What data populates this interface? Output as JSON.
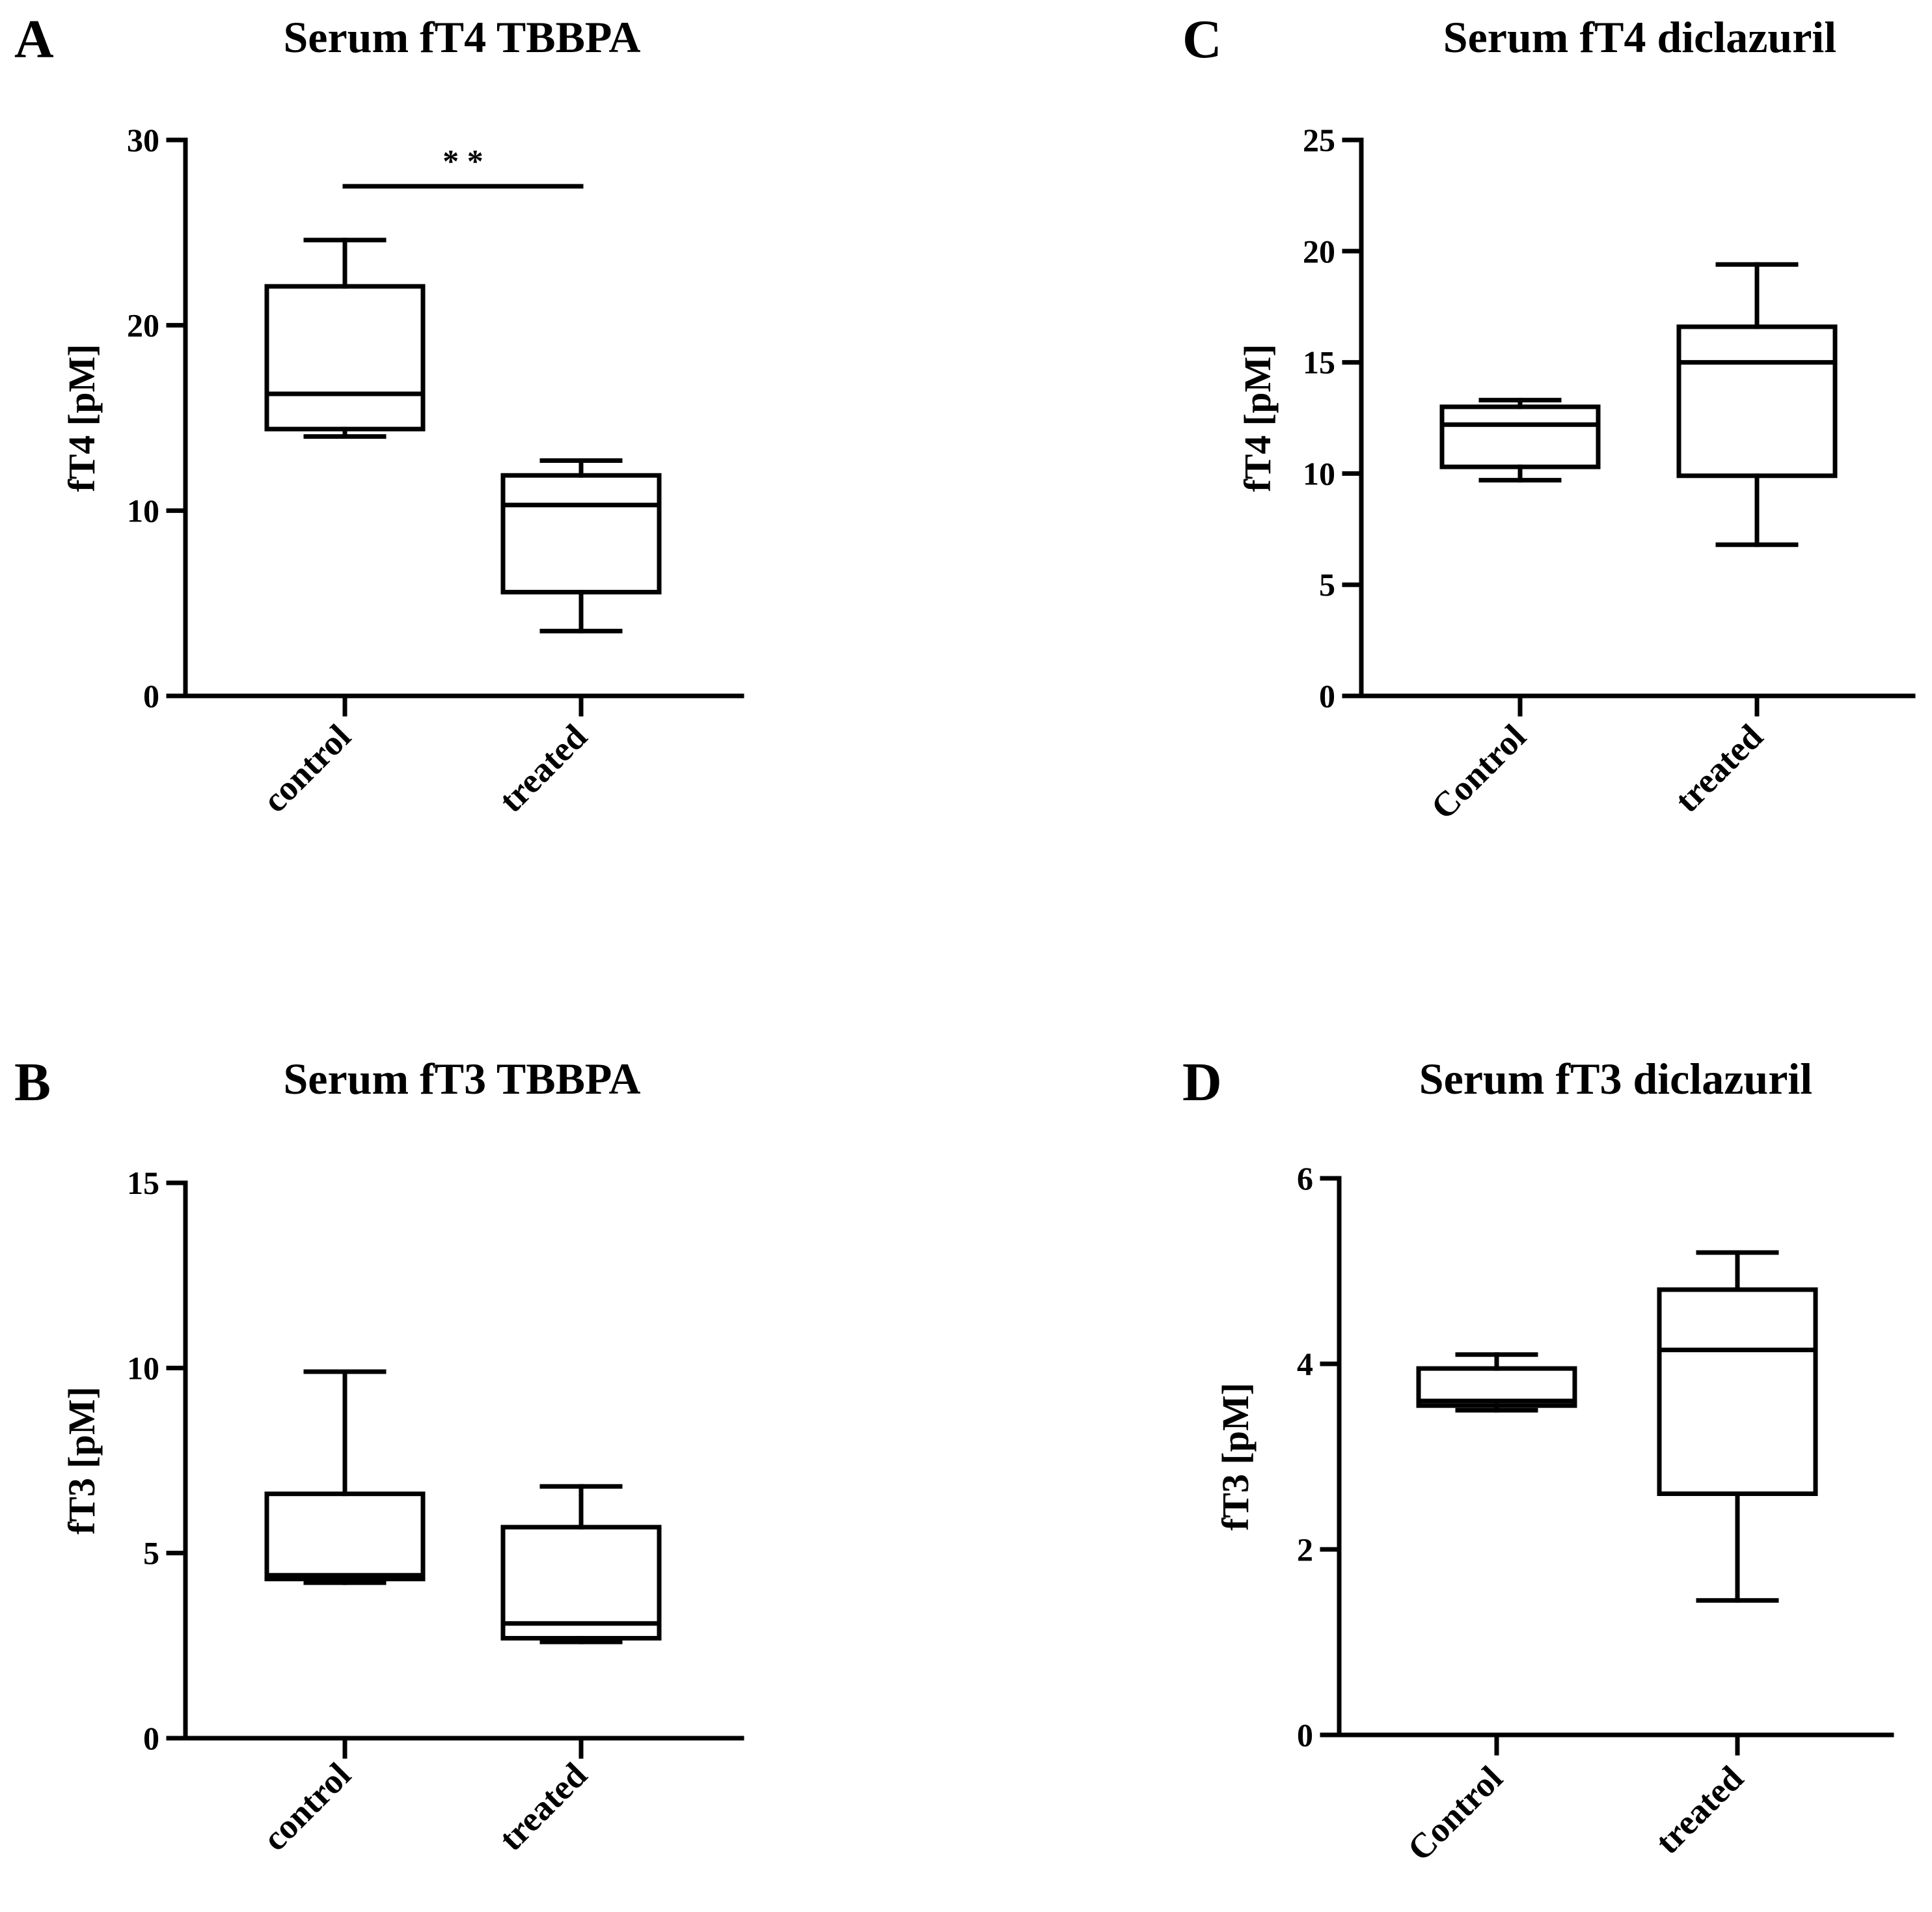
{
  "figure": {
    "colors": {
      "ink": "#000000",
      "background": "#ffffff"
    }
  },
  "chart_data": [
    {
      "id": "A",
      "panel_label": "A",
      "type": "box",
      "title": "Serum fT4 TBBPA",
      "ylabel": "fT4 [pM]",
      "xlabel": "",
      "ylim": [
        0,
        30
      ],
      "yticks": [
        0,
        10,
        20,
        30
      ],
      "categories": [
        "control",
        "treated"
      ],
      "boxes": [
        {
          "category": "control",
          "min": 14.0,
          "q1": 14.4,
          "median": 16.3,
          "q3": 22.1,
          "max": 24.6
        },
        {
          "category": "treated",
          "min": 3.5,
          "q1": 5.6,
          "median": 10.3,
          "q3": 11.9,
          "max": 12.7
        }
      ],
      "significance": {
        "label": "* *",
        "y": 27.5,
        "from": "control",
        "to": "treated"
      }
    },
    {
      "id": "B",
      "panel_label": "B",
      "type": "box",
      "title": "Serum fT3 TBBPA",
      "ylabel": "fT3 [pM]",
      "xlabel": "",
      "ylim": [
        0,
        15
      ],
      "yticks": [
        0,
        5,
        10,
        15
      ],
      "categories": [
        "control",
        "treated"
      ],
      "boxes": [
        {
          "category": "control",
          "min": 4.2,
          "q1": 4.3,
          "median": 4.4,
          "q3": 6.6,
          "max": 9.9
        },
        {
          "category": "treated",
          "min": 2.6,
          "q1": 2.7,
          "median": 3.1,
          "q3": 5.7,
          "max": 6.8
        }
      ]
    },
    {
      "id": "C",
      "panel_label": "C",
      "type": "box",
      "title": "Serum fT4 diclazuril",
      "ylabel": "fT4 [pM]",
      "xlabel": "",
      "ylim": [
        0,
        25
      ],
      "yticks": [
        0,
        5,
        10,
        15,
        20,
        25
      ],
      "categories": [
        "Control",
        "treated"
      ],
      "boxes": [
        {
          "category": "Control",
          "min": 9.7,
          "q1": 10.3,
          "median": 12.2,
          "q3": 13.0,
          "max": 13.3
        },
        {
          "category": "treated",
          "min": 6.8,
          "q1": 9.9,
          "median": 15.0,
          "q3": 16.6,
          "max": 19.4
        }
      ]
    },
    {
      "id": "D",
      "panel_label": "D",
      "type": "box",
      "title": "Serum fT3 diclazuril",
      "ylabel": "fT3 [pM]",
      "xlabel": "",
      "ylim": [
        0,
        6
      ],
      "yticks": [
        0,
        2,
        4,
        6
      ],
      "categories": [
        "Control",
        "treated"
      ],
      "boxes": [
        {
          "category": "Control",
          "min": 3.5,
          "q1": 3.55,
          "median": 3.6,
          "q3": 3.95,
          "max": 4.1
        },
        {
          "category": "treated",
          "min": 1.45,
          "q1": 2.6,
          "median": 4.15,
          "q3": 4.8,
          "max": 5.2
        }
      ]
    }
  ]
}
